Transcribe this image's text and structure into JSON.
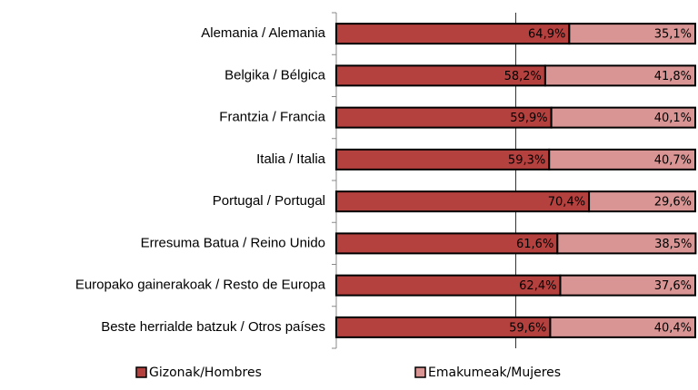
{
  "chart_data": {
    "type": "stacked-bar-horizontal",
    "categories": [
      "Alemania / Alemania",
      "Belgika / Bélgica",
      "Frantzia / Francia",
      "Italia / Italia",
      "Portugal / Portugal",
      "Erresuma Batua / Reino Unido",
      "Europako gainerakoak / Resto de Europa",
      "Beste herrialde batzuk / Otros países"
    ],
    "series": [
      {
        "name": "Gizonak/Hombres",
        "color": "#b5413f",
        "values": [
          64.9,
          58.2,
          59.9,
          59.3,
          70.4,
          61.6,
          62.4,
          59.6
        ],
        "value_labels": [
          "64,9%",
          "58,2%",
          "59,9%",
          "59,3%",
          "70,4%",
          "61,6%",
          "62,4%",
          "59,6%"
        ]
      },
      {
        "name": "Emakumeak/Mujeres",
        "color": "#d99594",
        "values": [
          35.1,
          41.8,
          40.1,
          40.7,
          29.6,
          38.5,
          37.6,
          40.4
        ],
        "value_labels": [
          "35,1%",
          "41,8%",
          "40,1%",
          "40,7%",
          "29,6%",
          "38,5%",
          "37,6%",
          "40,4%"
        ]
      }
    ],
    "xlim": [
      0,
      100
    ]
  }
}
